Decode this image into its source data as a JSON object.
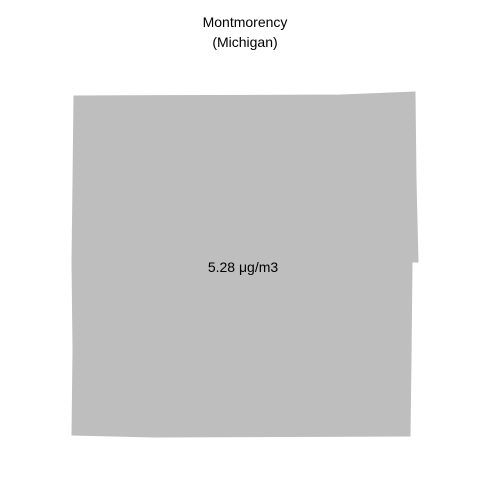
{
  "title": {
    "county": "Montmorency",
    "state": "(Michigan)"
  },
  "region": {
    "name": "Montmorency",
    "value_label": "5.28 μg/m3",
    "fill_color": "#bebebe"
  }
}
